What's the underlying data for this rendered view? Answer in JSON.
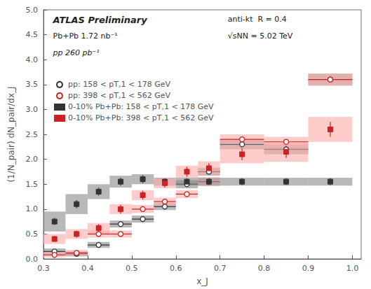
{
  "chart_data": {
    "type": "scatter",
    "xlabel": "x_J",
    "ylabel": "(1/N_pair) dN_pair/dx_J",
    "annotations": [
      "ATLAS Preliminary",
      "Pb+Pb 1.72 nb⁻¹",
      "pp 260 pb⁻¹",
      "anti-kt  R = 0.4",
      "√sNN = 5.02 TeV"
    ],
    "xlim": [
      0.3,
      1.02
    ],
    "ylim": [
      0.0,
      5.0
    ],
    "xticks": [
      0.3,
      0.4,
      0.5,
      0.6,
      0.7,
      0.8,
      0.9,
      {
        "value": 1.0,
        "label": "1.0"
      }
    ],
    "yticks": [
      {
        "value": 0,
        "label": "0.0"
      },
      0.5,
      {
        "value": 1.0,
        "label": "1.0"
      },
      1.5,
      {
        "value": 2.0,
        "label": "2.0"
      },
      2.5,
      {
        "value": 3.0,
        "label": "3.0"
      },
      3.5,
      {
        "value": 4.0,
        "label": "4.0"
      },
      4.5,
      {
        "value": 5.0,
        "label": "5.0"
      }
    ],
    "grid": false,
    "legend": "left",
    "series": [
      {
        "name": "pp: 158 < pT,1 < 178 GeV",
        "color": "#333333",
        "syst_color": "#888888",
        "marker": "open circle",
        "x": [
          0.325,
          0.375,
          0.425,
          0.475,
          0.525,
          0.575,
          0.625,
          0.675,
          0.75,
          0.85,
          0.95
        ],
        "values": [
          0.15,
          0.1,
          0.28,
          0.7,
          0.8,
          1.05,
          1.5,
          1.75,
          2.3,
          2.2,
          3.6
        ],
        "xerr": [
          0.025,
          0.025,
          0.025,
          0.025,
          0.025,
          0.025,
          0.025,
          0.025,
          0.05,
          0.05,
          0.05
        ],
        "syst_h": [
          0.06,
          0.05,
          0.06,
          0.07,
          0.07,
          0.07,
          0.08,
          0.08,
          0.1,
          0.1,
          0.12
        ]
      },
      {
        "name": "pp: 398 < pT,1 < 562 GeV",
        "color": "#cc2222",
        "syst_color": "#ffaaaa",
        "marker": "open circle",
        "x": [
          0.325,
          0.375,
          0.425,
          0.475,
          0.525,
          0.575,
          0.625,
          0.675,
          0.75,
          0.85,
          0.95
        ],
        "values": [
          0.08,
          0.12,
          0.5,
          0.5,
          1.0,
          1.15,
          1.3,
          1.55,
          2.4,
          2.35,
          3.6
        ],
        "xerr": [
          0.025,
          0.025,
          0.025,
          0.025,
          0.025,
          0.025,
          0.025,
          0.025,
          0.05,
          0.05,
          0.05
        ],
        "syst_h": [
          0.05,
          0.06,
          0.07,
          0.07,
          0.08,
          0.08,
          0.08,
          0.09,
          0.1,
          0.1,
          0.12
        ]
      },
      {
        "name": "0-10% Pb+Pb: 158 < pT,1 < 178 GeV",
        "color": "#333333",
        "syst_color": "#888888",
        "marker": "square",
        "x": [
          0.325,
          0.375,
          0.425,
          0.475,
          0.525,
          0.575,
          0.625,
          0.675,
          0.75,
          0.85,
          0.95
        ],
        "values": [
          0.75,
          1.1,
          1.35,
          1.55,
          1.6,
          1.55,
          1.55,
          1.55,
          1.55,
          1.55,
          1.55
        ],
        "yerr": [
          0.07,
          0.08,
          0.08,
          0.08,
          0.08,
          0.07,
          0.07,
          0.07,
          0.07,
          0.07,
          0.07
        ],
        "syst_w": [
          0.025,
          0.025,
          0.025,
          0.025,
          0.025,
          0.025,
          0.025,
          0.025,
          0.05,
          0.05,
          0.05
        ],
        "syst_h": [
          0.2,
          0.2,
          0.15,
          0.12,
          0.1,
          0.08,
          0.08,
          0.08,
          0.08,
          0.08,
          0.08
        ]
      },
      {
        "name": "0-10% Pb+Pb: 398 < pT,1 < 562 GeV",
        "color": "#cc2222",
        "syst_color": "#ffaaaa",
        "marker": "square",
        "x": [
          0.325,
          0.375,
          0.425,
          0.475,
          0.525,
          0.575,
          0.625,
          0.675,
          0.75,
          0.85,
          0.95
        ],
        "values": [
          0.4,
          0.5,
          0.62,
          1.0,
          1.28,
          1.52,
          1.75,
          1.82,
          2.1,
          2.15,
          2.6
        ],
        "yerr": [
          0.06,
          0.07,
          0.08,
          0.09,
          0.09,
          0.09,
          0.1,
          0.1,
          0.12,
          0.12,
          0.15
        ],
        "syst_w": [
          0.025,
          0.025,
          0.025,
          0.025,
          0.025,
          0.025,
          0.025,
          0.025,
          0.05,
          0.05,
          0.05
        ],
        "syst_h": [
          0.1,
          0.1,
          0.1,
          0.1,
          0.1,
          0.1,
          0.12,
          0.14,
          0.18,
          0.2,
          0.25
        ]
      }
    ]
  }
}
